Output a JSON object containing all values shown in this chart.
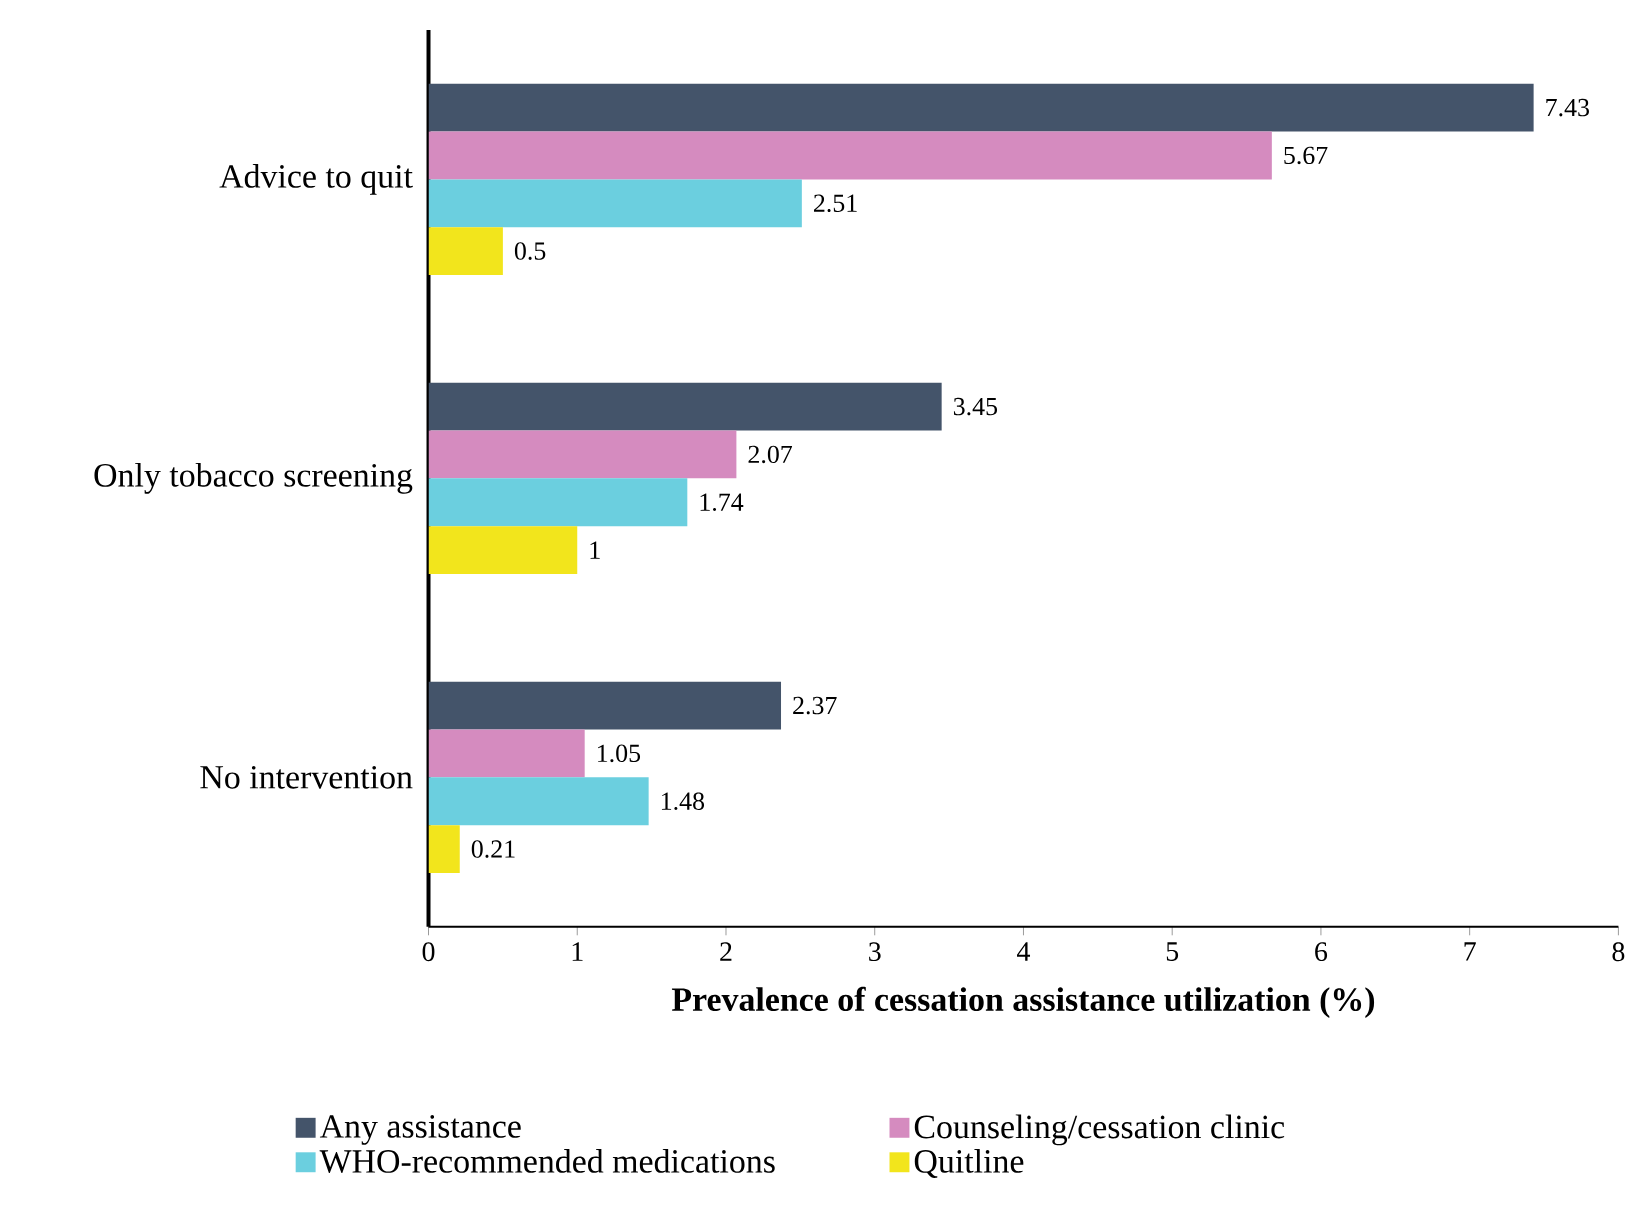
{
  "chart_data": {
    "type": "bar",
    "orientation": "horizontal",
    "xlabel": "Prevalence of cessation assistance utilization (%)",
    "categories": [
      "Advice to quit",
      "Only tobacco screening",
      "No intervention"
    ],
    "series": [
      {
        "name": "Any assistance",
        "color": "#44546a",
        "values": [
          7.43,
          3.45,
          2.37
        ]
      },
      {
        "name": "Counseling/cessation clinic",
        "color": "#d58bbf",
        "values": [
          5.67,
          2.07,
          1.05
        ]
      },
      {
        "name": "WHO-recommended medications",
        "color": "#6bcfdf",
        "values": [
          2.51,
          1.74,
          1.48
        ]
      },
      {
        "name": "Quitline",
        "color": "#f2e51c",
        "values": [
          0.5,
          1,
          0.21
        ]
      }
    ],
    "xlim": [
      0,
      8
    ],
    "xticks": [
      0,
      1,
      2,
      3,
      4,
      5,
      6,
      7,
      8
    ],
    "data_labels": true,
    "legend": "bottom"
  }
}
